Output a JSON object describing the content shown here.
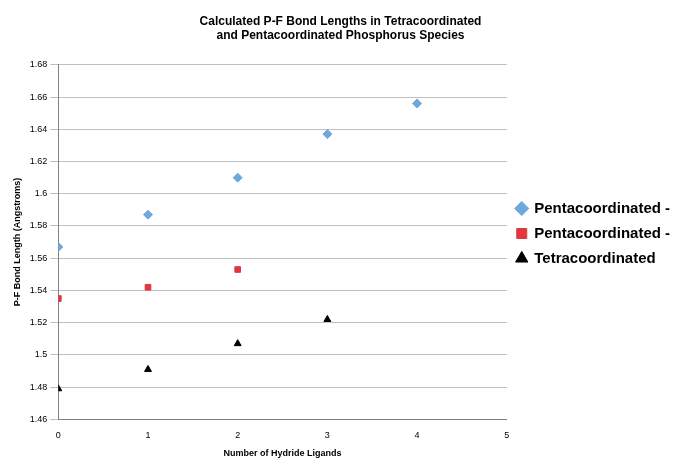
{
  "chart_data": {
    "type": "scatter",
    "title": "Calculated P-F Bond Lengths in Tetracoordinated and Pentacoordinated Phosphorus Species",
    "x_label": "Number of Hydride Ligands",
    "y_label": "P-F Bond Length (Angstroms)",
    "x": [
      0,
      1,
      2,
      3,
      4
    ],
    "series": [
      {
        "name": "Pentacoordinated - Axial",
        "color": "#6fa8dc",
        "marker": "diamond",
        "values": [
          1.567,
          1.587,
          1.61,
          1.637,
          1.656
        ]
      },
      {
        "name": "Pentacoordinated - Equatorial",
        "color": "#e0383e",
        "marker": "square",
        "values": [
          1.535,
          1.542,
          1.553,
          null,
          null
        ]
      },
      {
        "name": "Tetracoordinated",
        "color": "#000000",
        "marker": "triangle",
        "values": [
          1.479,
          1.491,
          1.507,
          1.522,
          null
        ]
      }
    ],
    "xlim": [
      0,
      5
    ],
    "xticks": [
      0,
      1,
      2,
      3,
      4,
      5
    ],
    "ylim": [
      1.46,
      1.68
    ],
    "yticks": [
      1.46,
      1.48,
      1.5,
      1.52,
      1.54,
      1.56,
      1.58,
      1.6,
      1.62,
      1.64,
      1.66,
      1.68
    ],
    "grid": true,
    "legend": "right"
  }
}
